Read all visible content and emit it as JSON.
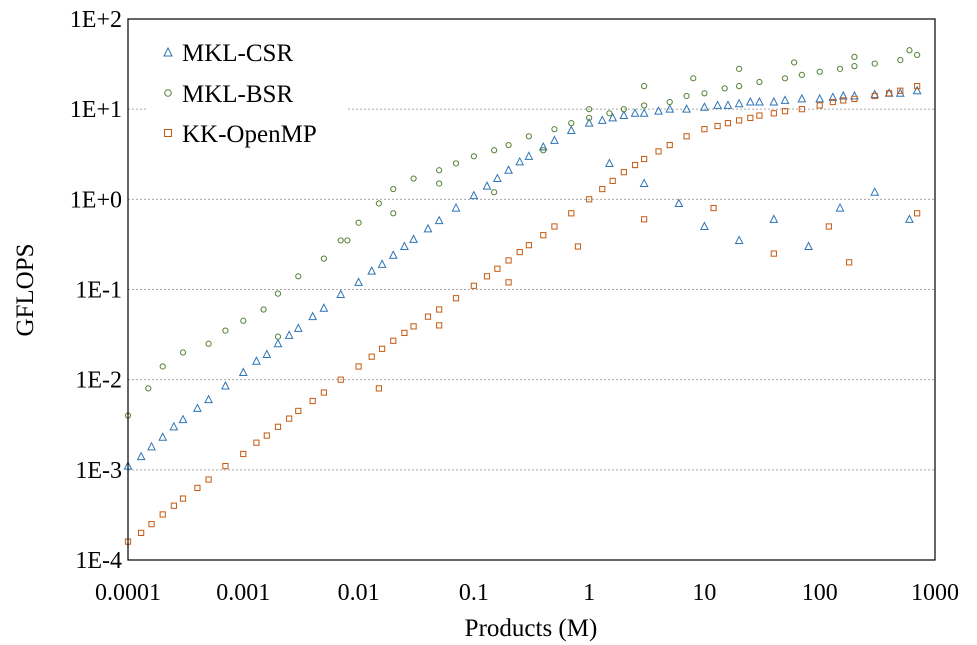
{
  "chart_data": {
    "type": "scatter",
    "title": "",
    "xlabel": "Products (M)",
    "ylabel": "GFLOPS",
    "xscale": "log",
    "yscale": "log",
    "xlim": [
      0.0001,
      1000
    ],
    "ylim": [
      0.0001,
      100
    ],
    "x_ticks": [
      0.0001,
      0.001,
      0.01,
      0.1,
      1,
      10,
      100,
      1000
    ],
    "x_tick_labels": [
      "0.0001",
      "0.001",
      "0.01",
      "0.1",
      "1",
      "10",
      "100",
      "1000"
    ],
    "y_ticks": [
      0.0001,
      0.001,
      0.01,
      0.1,
      1,
      10,
      100
    ],
    "y_tick_labels": [
      "1E-4",
      "1E-3",
      "1E-2",
      "1E-1",
      "1E+0",
      "1E+1",
      "1E+2"
    ],
    "grid": "horizontal-dotted",
    "legend_position": "top-left",
    "series": [
      {
        "name": "MKL-CSR",
        "marker": "triangle",
        "color": "#2E75B6",
        "x": [
          0.0001,
          0.00013,
          0.00016,
          0.0002,
          0.00025,
          0.0003,
          0.0004,
          0.0005,
          0.0007,
          0.001,
          0.0013,
          0.0016,
          0.002,
          0.0025,
          0.003,
          0.004,
          0.005,
          0.007,
          0.01,
          0.013,
          0.016,
          0.02,
          0.025,
          0.03,
          0.04,
          0.05,
          0.07,
          0.1,
          0.13,
          0.16,
          0.2,
          0.25,
          0.3,
          0.4,
          0.5,
          0.7,
          1,
          1.3,
          1.6,
          2,
          2.5,
          3,
          4,
          5,
          7,
          10,
          13,
          16,
          20,
          25,
          30,
          40,
          50,
          70,
          100,
          130,
          160,
          200,
          300,
          400,
          500,
          700,
          1.5,
          3,
          6,
          10,
          20,
          40,
          80,
          150,
          300,
          600
        ],
        "y": [
          0.0011,
          0.0014,
          0.0018,
          0.0023,
          0.003,
          0.0036,
          0.0048,
          0.006,
          0.0085,
          0.012,
          0.016,
          0.019,
          0.025,
          0.031,
          0.037,
          0.05,
          0.062,
          0.088,
          0.12,
          0.16,
          0.19,
          0.24,
          0.3,
          0.36,
          0.47,
          0.58,
          0.8,
          1.1,
          1.4,
          1.7,
          2.1,
          2.6,
          3,
          3.8,
          4.5,
          5.8,
          7,
          7.5,
          8,
          8.5,
          9,
          9,
          9.5,
          10,
          10,
          10.5,
          11,
          11,
          11.5,
          12,
          12,
          12,
          12.5,
          13,
          13,
          13.5,
          14,
          14,
          14.5,
          15,
          15,
          16,
          2.5,
          1.5,
          0.9,
          0.5,
          0.35,
          0.6,
          0.3,
          0.8,
          1.2,
          0.6
        ]
      },
      {
        "name": "MKL-BSR",
        "marker": "circle",
        "color": "#548235",
        "x": [
          0.0001,
          0.00015,
          0.0002,
          0.0003,
          0.0005,
          0.0007,
          0.001,
          0.0015,
          0.002,
          0.003,
          0.005,
          0.007,
          0.01,
          0.015,
          0.02,
          0.03,
          0.05,
          0.07,
          0.1,
          0.15,
          0.2,
          0.3,
          0.5,
          0.7,
          1,
          1.5,
          2,
          3,
          5,
          7,
          10,
          15,
          20,
          30,
          50,
          70,
          100,
          150,
          200,
          300,
          500,
          700,
          0.002,
          0.008,
          0.02,
          0.05,
          0.15,
          0.4,
          1,
          3,
          8,
          20,
          60,
          200,
          600
        ],
        "y": [
          0.004,
          0.008,
          0.014,
          0.02,
          0.025,
          0.035,
          0.045,
          0.06,
          0.09,
          0.14,
          0.22,
          0.35,
          0.55,
          0.9,
          1.3,
          1.7,
          2.1,
          2.5,
          3,
          3.5,
          4,
          5,
          6,
          7,
          8,
          9,
          10,
          11,
          12,
          14,
          15,
          17,
          18,
          20,
          22,
          24,
          26,
          28,
          30,
          32,
          35,
          40,
          0.03,
          0.35,
          0.7,
          1.5,
          1.2,
          3.5,
          10,
          18,
          22,
          28,
          33,
          38,
          45
        ]
      },
      {
        "name": "KK-OpenMP",
        "marker": "square",
        "color": "#C55A11",
        "x": [
          0.0001,
          0.00013,
          0.00016,
          0.0002,
          0.00025,
          0.0003,
          0.0004,
          0.0005,
          0.0007,
          0.001,
          0.0013,
          0.0016,
          0.002,
          0.0025,
          0.003,
          0.004,
          0.005,
          0.007,
          0.01,
          0.013,
          0.016,
          0.02,
          0.025,
          0.03,
          0.04,
          0.05,
          0.07,
          0.1,
          0.13,
          0.16,
          0.2,
          0.25,
          0.3,
          0.4,
          0.5,
          0.7,
          1,
          1.3,
          1.6,
          2,
          2.5,
          3,
          4,
          5,
          7,
          10,
          13,
          16,
          20,
          25,
          30,
          40,
          50,
          70,
          100,
          130,
          160,
          200,
          300,
          400,
          500,
          700,
          0.015,
          0.05,
          0.2,
          0.8,
          3,
          12,
          40,
          120,
          180,
          700
        ],
        "y": [
          0.00016,
          0.0002,
          0.00025,
          0.00032,
          0.0004,
          0.00048,
          0.00063,
          0.00078,
          0.0011,
          0.0015,
          0.002,
          0.0024,
          0.003,
          0.0037,
          0.0045,
          0.0058,
          0.0072,
          0.01,
          0.014,
          0.018,
          0.022,
          0.027,
          0.033,
          0.039,
          0.05,
          0.06,
          0.08,
          0.11,
          0.14,
          0.17,
          0.21,
          0.26,
          0.31,
          0.4,
          0.5,
          0.7,
          1,
          1.3,
          1.6,
          2,
          2.4,
          2.8,
          3.4,
          4,
          5,
          6,
          6.5,
          7,
          7.5,
          8,
          8.5,
          9,
          9.5,
          10,
          11,
          12,
          12.5,
          13,
          14,
          15,
          16,
          18,
          0.008,
          0.04,
          0.12,
          0.3,
          0.6,
          0.8,
          0.25,
          0.5,
          0.2,
          0.7
        ]
      }
    ]
  }
}
